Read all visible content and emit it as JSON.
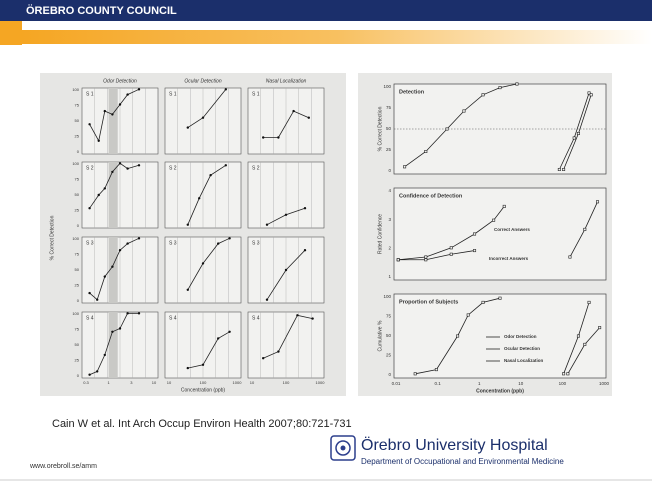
{
  "header": {
    "title": "ÖREBRO COUNTY COUNCIL"
  },
  "figure_left": {
    "column_titles": [
      "Odor Detection",
      "Ocular Detection",
      "Nasal Localization"
    ],
    "panel_labels": [
      "S 1",
      "S 2",
      "S 3",
      "S 4"
    ],
    "y_label": "% Correct Detection",
    "y_ticks": [
      "100",
      "75",
      "50",
      "25",
      "0"
    ],
    "x_ticks": [
      [
        "0.3",
        "1",
        "3",
        "10"
      ],
      [
        "10",
        "100",
        "1000"
      ],
      [
        "10",
        "100",
        "1000"
      ]
    ],
    "x_label": "Concentration (ppb)"
  },
  "figure_right": {
    "panels": [
      {
        "title": "Detection",
        "y_label": "% Correct Detection",
        "y_ticks": [
          "100",
          "75",
          "50",
          "25",
          "0"
        ]
      },
      {
        "title": "Confidence of Detection",
        "y_label": "Rated Confidence",
        "y_ticks": [
          "4",
          "3",
          "2",
          "1"
        ]
      },
      {
        "title": "Proportion of Subjects",
        "y_label": "Cumulative %",
        "y_ticks": [
          "100",
          "75",
          "50",
          "25",
          "0"
        ]
      }
    ],
    "annotations": [
      "Correct Answers",
      "Incorrect Answers"
    ],
    "legend": [
      "Odor Detection",
      "Ocular Detection",
      "Nasal Localization"
    ],
    "x_ticks": [
      "0.01",
      "0.1",
      "1",
      "10",
      "100",
      "1000"
    ],
    "x_label": "Concentration (ppb)"
  },
  "citation": "Cain W et al. Int Arch Occup Environ Health 2007;80:721-731",
  "footer": {
    "url": "www.orebroll.se/amm",
    "hospital": "Örebro University Hospital",
    "department": "Department of Occupational and Environmental Medicine"
  }
}
